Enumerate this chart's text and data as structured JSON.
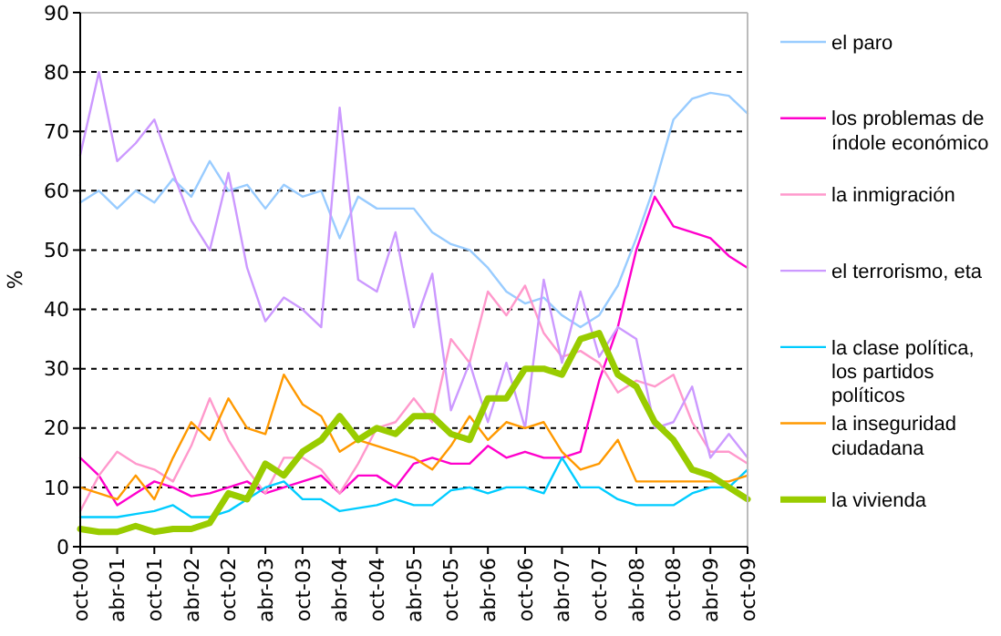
{
  "chart_data": {
    "type": "line",
    "ylabel": "%",
    "x": [
      "2000-10",
      "2001-01",
      "2001-04",
      "2001-07",
      "2001-10",
      "2002-01",
      "2002-04",
      "2002-07",
      "2002-10",
      "2003-01",
      "2003-04",
      "2003-07",
      "2003-10",
      "2004-01",
      "2004-04",
      "2004-07",
      "2004-10",
      "2005-01",
      "2005-04",
      "2005-07",
      "2005-10",
      "2006-01",
      "2006-04",
      "2006-07",
      "2006-10",
      "2007-01",
      "2007-04",
      "2007-07",
      "2007-10",
      "2008-01",
      "2008-04",
      "2008-07",
      "2008-10",
      "2009-01",
      "2009-04",
      "2009-07",
      "2009-10"
    ],
    "series": [
      {
        "name": "el paro",
        "color": "#99ccff",
        "values": [
          58,
          60,
          57,
          60,
          58,
          62,
          59,
          65,
          60,
          61,
          57,
          61,
          59,
          60,
          52,
          59,
          57,
          57,
          57,
          53,
          51,
          50,
          47,
          43,
          41,
          42,
          39,
          37,
          39,
          44,
          52,
          61,
          72,
          75.5,
          76.5,
          76,
          73
        ]
      },
      {
        "name": "los problemas de índole económico",
        "color": "#ff00cc",
        "values": [
          15,
          12,
          7,
          9,
          11,
          10,
          8.5,
          9,
          10,
          11,
          9,
          10,
          11,
          12,
          9,
          12,
          12,
          10,
          14,
          15,
          14,
          14,
          17,
          15,
          16,
          15,
          15,
          16,
          28,
          37,
          50,
          59,
          54,
          53,
          52,
          49,
          47
        ]
      },
      {
        "name": "la inmigración",
        "color": "#ff99cc",
        "values": [
          6,
          12,
          16,
          14,
          13,
          11,
          17,
          25,
          18,
          13,
          9,
          15,
          15,
          13,
          9,
          14,
          20,
          21,
          25,
          21,
          35,
          31,
          43,
          39,
          44,
          36,
          32,
          33,
          31,
          26,
          28,
          27,
          29,
          21,
          16,
          16,
          14
        ]
      },
      {
        "name": "el terrorismo, eta",
        "color": "#cc99ff",
        "values": [
          66,
          80,
          65,
          68,
          72,
          63,
          55,
          50,
          63,
          47,
          38,
          42,
          40,
          37,
          74,
          45,
          43,
          53,
          37,
          46,
          23,
          31,
          21,
          31,
          20,
          45,
          31,
          43,
          32,
          37,
          35,
          20,
          21,
          27,
          15,
          19,
          15
        ]
      },
      {
        "name": "la clase política, los partidos políticos",
        "color": "#00ccff",
        "values": [
          5,
          5,
          5,
          5.5,
          6,
          7,
          5,
          5,
          6,
          8,
          10,
          11,
          8,
          8,
          6,
          6.5,
          7,
          8,
          7,
          7,
          9.5,
          10,
          9,
          10,
          10,
          9,
          15,
          10,
          10,
          8,
          7,
          7,
          7,
          9,
          10,
          10,
          13
        ]
      },
      {
        "name": "la inseguridad ciudadana",
        "color": "#ff9900",
        "values": [
          10,
          9,
          8,
          12,
          8,
          15,
          21,
          18,
          25,
          20,
          19,
          29,
          24,
          22,
          16,
          18,
          17,
          16,
          15,
          13,
          17,
          22,
          18,
          21,
          20,
          21,
          16,
          13,
          14,
          18,
          11,
          11,
          11,
          11,
          11,
          11,
          12
        ]
      },
      {
        "name": "la vivienda",
        "color": "#99cc00",
        "values": [
          3,
          2.5,
          2.5,
          3.5,
          2.5,
          3,
          3,
          4,
          9,
          8,
          14,
          12,
          16,
          18,
          22,
          18,
          20,
          19,
          22,
          22,
          19,
          18,
          25,
          25,
          30,
          30,
          29,
          35,
          36,
          29,
          27,
          21,
          18,
          13,
          12,
          10,
          8
        ]
      }
    ],
    "xlim": [
      "2000-10",
      "2009-10"
    ],
    "xticks": [
      {
        "value": "2000-10",
        "label": "oct-00"
      },
      {
        "value": "2001-04",
        "label": "abr-01"
      },
      {
        "value": "2001-10",
        "label": "oct-01"
      },
      {
        "value": "2002-04",
        "label": "abr-02"
      },
      {
        "value": "2002-10",
        "label": "oct-02"
      },
      {
        "value": "2003-04",
        "label": "abr-03"
      },
      {
        "value": "2003-10",
        "label": "oct-03"
      },
      {
        "value": "2004-04",
        "label": "abr-04"
      },
      {
        "value": "2004-10",
        "label": "oct-04"
      },
      {
        "value": "2005-04",
        "label": "abr-05"
      },
      {
        "value": "2005-10",
        "label": "oct-05"
      },
      {
        "value": "2006-04",
        "label": "abr-06"
      },
      {
        "value": "2006-10",
        "label": "oct-06"
      },
      {
        "value": "2007-04",
        "label": "abr-07"
      },
      {
        "value": "2007-10",
        "label": "oct-07"
      },
      {
        "value": "2008-04",
        "label": "abr-08"
      },
      {
        "value": "2008-10",
        "label": "oct-08"
      },
      {
        "value": "2009-04",
        "label": "abr-09"
      },
      {
        "value": "2009-10",
        "label": "oct-09"
      }
    ],
    "ylim": [
      0,
      90
    ],
    "yticks": [
      0,
      10,
      20,
      30,
      40,
      50,
      60,
      70,
      80,
      90
    ],
    "grid": "y",
    "legend": "right",
    "line_style": "solid"
  }
}
